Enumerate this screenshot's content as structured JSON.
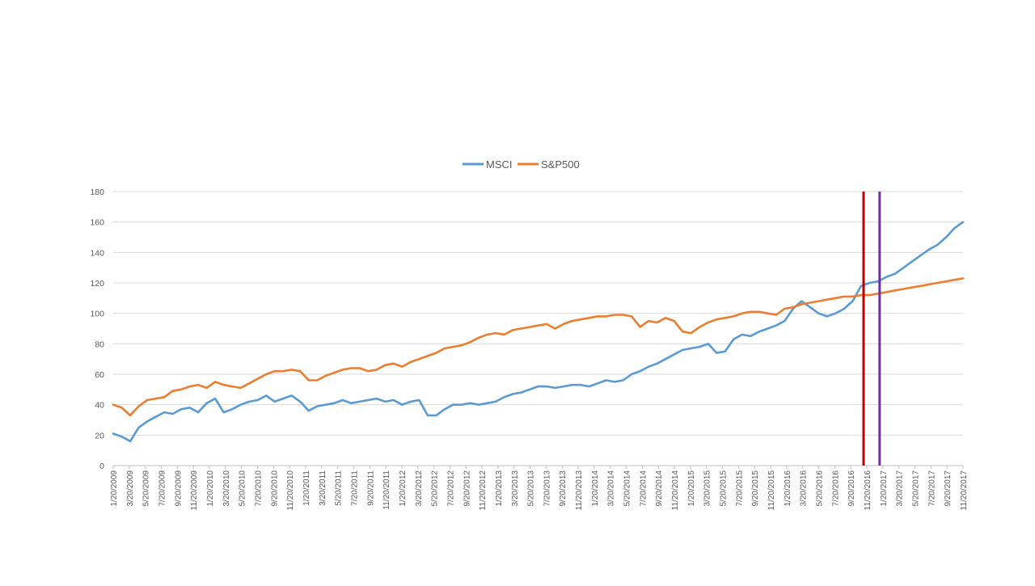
{
  "chart_data": {
    "type": "line",
    "title": "",
    "xlabel": "",
    "ylabel": "",
    "ylim": [
      0,
      180
    ],
    "yticks": [
      0,
      20,
      40,
      60,
      80,
      100,
      120,
      140,
      160,
      180
    ],
    "grid": true,
    "legend_position": "top-center",
    "x_tick_labels": [
      "1/20/2009",
      "3/20/2009",
      "5/20/2009",
      "7/20/2009",
      "9/20/2009",
      "11/20/2009",
      "1/20/2010",
      "3/20/2010",
      "5/20/2010",
      "7/20/2010",
      "9/20/2010",
      "11/20/2010",
      "1/20/2011",
      "3/20/2011",
      "5/20/2011",
      "7/20/2011",
      "9/20/2011",
      "11/20/2011",
      "1/20/2012",
      "3/20/2012",
      "5/20/2012",
      "7/20/2012",
      "9/20/2012",
      "11/20/2012",
      "1/20/2013",
      "3/20/2013",
      "5/20/2013",
      "7/20/2013",
      "9/20/2013",
      "11/20/2013",
      "1/20/2014",
      "3/20/2014",
      "5/20/2014",
      "7/20/2014",
      "9/20/2014",
      "11/20/2014",
      "1/20/2015",
      "3/20/2015",
      "5/20/2015",
      "7/20/2015",
      "9/20/2015",
      "11/20/2015",
      "1/20/2016",
      "3/20/2016",
      "5/20/2016",
      "7/20/2016",
      "9/20/2016",
      "11/20/2016",
      "1/20/2017",
      "3/20/2017",
      "5/20/2017",
      "7/20/2017",
      "9/20/2017",
      "11/20/2017"
    ],
    "series": [
      {
        "name": "MSCI",
        "color": "#5b9bd5",
        "values": [
          21,
          19,
          16,
          25,
          29,
          32,
          35,
          34,
          37,
          38,
          35,
          41,
          44,
          35,
          37,
          40,
          42,
          43,
          46,
          42,
          44,
          46,
          42,
          36,
          39,
          40,
          41,
          43,
          41,
          42,
          43,
          44,
          42,
          43,
          40,
          42,
          43,
          33,
          33,
          37,
          40,
          40,
          41,
          40,
          41,
          42,
          45,
          47,
          48,
          50,
          52,
          52,
          51,
          52,
          53,
          53,
          52,
          54,
          56,
          55,
          56,
          60,
          62,
          65,
          67,
          70,
          73,
          76,
          77,
          78,
          80,
          74,
          75,
          83,
          86,
          85,
          88,
          90,
          92,
          95,
          103,
          108,
          104,
          100,
          98,
          100,
          103,
          108,
          118,
          120,
          121,
          124,
          126,
          130,
          134,
          138,
          142,
          145,
          150,
          156,
          160
        ]
      },
      {
        "name": "S&P500",
        "color": "#ed7d31",
        "values": [
          40,
          38,
          33,
          39,
          43,
          44,
          45,
          49,
          50,
          52,
          53,
          51,
          55,
          53,
          52,
          51,
          54,
          57,
          60,
          62,
          62,
          63,
          62,
          56,
          56,
          59,
          61,
          63,
          64,
          64,
          62,
          63,
          66,
          67,
          65,
          68,
          70,
          72,
          74,
          77,
          78,
          79,
          81,
          84,
          86,
          87,
          86,
          89,
          90,
          91,
          92,
          93,
          90,
          93,
          95,
          96,
          97,
          98,
          98,
          99,
          99,
          98,
          91,
          95,
          94,
          97,
          95,
          88,
          87,
          91,
          94,
          96,
          97,
          98,
          100,
          101,
          101,
          100,
          99,
          103,
          104,
          106,
          107,
          108,
          109,
          110,
          111,
          111,
          112,
          112,
          113,
          114,
          115,
          116,
          117,
          118,
          119,
          120,
          121,
          122,
          123
        ]
      }
    ],
    "markers": [
      {
        "x_label": "11/20/2016",
        "color": "#c00000"
      },
      {
        "x_label": "1/20/2017",
        "color": "#7030a0"
      }
    ]
  }
}
